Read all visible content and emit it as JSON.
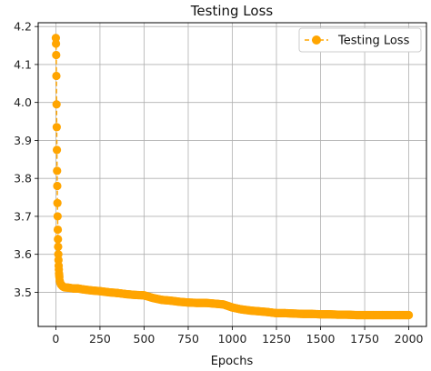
{
  "chart_data": {
    "type": "line",
    "title": "Testing Loss",
    "xlabel": "Epochs",
    "ylabel": "",
    "xlim": [
      -100,
      2100
    ],
    "ylim": [
      3.41,
      4.21
    ],
    "xticks": [
      0,
      250,
      500,
      750,
      1000,
      1250,
      1500,
      1750,
      2000
    ],
    "yticks": [
      3.5,
      3.6,
      3.7,
      3.8,
      3.9,
      4.0,
      4.1,
      4.2
    ],
    "xtick_labels": [
      "0",
      "250",
      "500",
      "750",
      "1000",
      "1250",
      "1500",
      "1750",
      "2000"
    ],
    "ytick_labels": [
      "3.5",
      "3.6",
      "3.7",
      "3.8",
      "3.9",
      "4.0",
      "4.1",
      "4.2"
    ],
    "grid": true,
    "legend": {
      "position": "top-right",
      "entries": [
        "Testing Loss"
      ]
    },
    "color": "#ffa500",
    "series": [
      {
        "name": "Testing Loss",
        "style": "dashed line with circle markers",
        "x": [
          0,
          1,
          2,
          3,
          4,
          5,
          6,
          7,
          8,
          9,
          10,
          11,
          12,
          13,
          14,
          15,
          16,
          17,
          18,
          19,
          20,
          22,
          25,
          30,
          40,
          50,
          75,
          100,
          125,
          150,
          200,
          250,
          300,
          350,
          400,
          450,
          500,
          550,
          600,
          650,
          700,
          750,
          800,
          850,
          900,
          950,
          1000,
          1050,
          1100,
          1150,
          1200,
          1250,
          1300,
          1350,
          1400,
          1450,
          1500,
          1550,
          1600,
          1650,
          1700,
          1750,
          1800,
          1850,
          1900,
          1950,
          2000
        ],
        "y": [
          4.17,
          4.155,
          4.125,
          4.07,
          3.995,
          3.935,
          3.875,
          3.82,
          3.78,
          3.735,
          3.7,
          3.665,
          3.64,
          3.62,
          3.6,
          3.585,
          3.57,
          3.56,
          3.55,
          3.545,
          3.54,
          3.53,
          3.525,
          3.52,
          3.515,
          3.513,
          3.512,
          3.51,
          3.51,
          3.508,
          3.505,
          3.503,
          3.5,
          3.498,
          3.495,
          3.493,
          3.492,
          3.485,
          3.48,
          3.478,
          3.475,
          3.473,
          3.472,
          3.472,
          3.47,
          3.468,
          3.46,
          3.455,
          3.452,
          3.45,
          3.448,
          3.445,
          3.445,
          3.444,
          3.443,
          3.443,
          3.442,
          3.442,
          3.441,
          3.441,
          3.44,
          3.44,
          3.44,
          3.44,
          3.44,
          3.44,
          3.44
        ]
      }
    ]
  }
}
